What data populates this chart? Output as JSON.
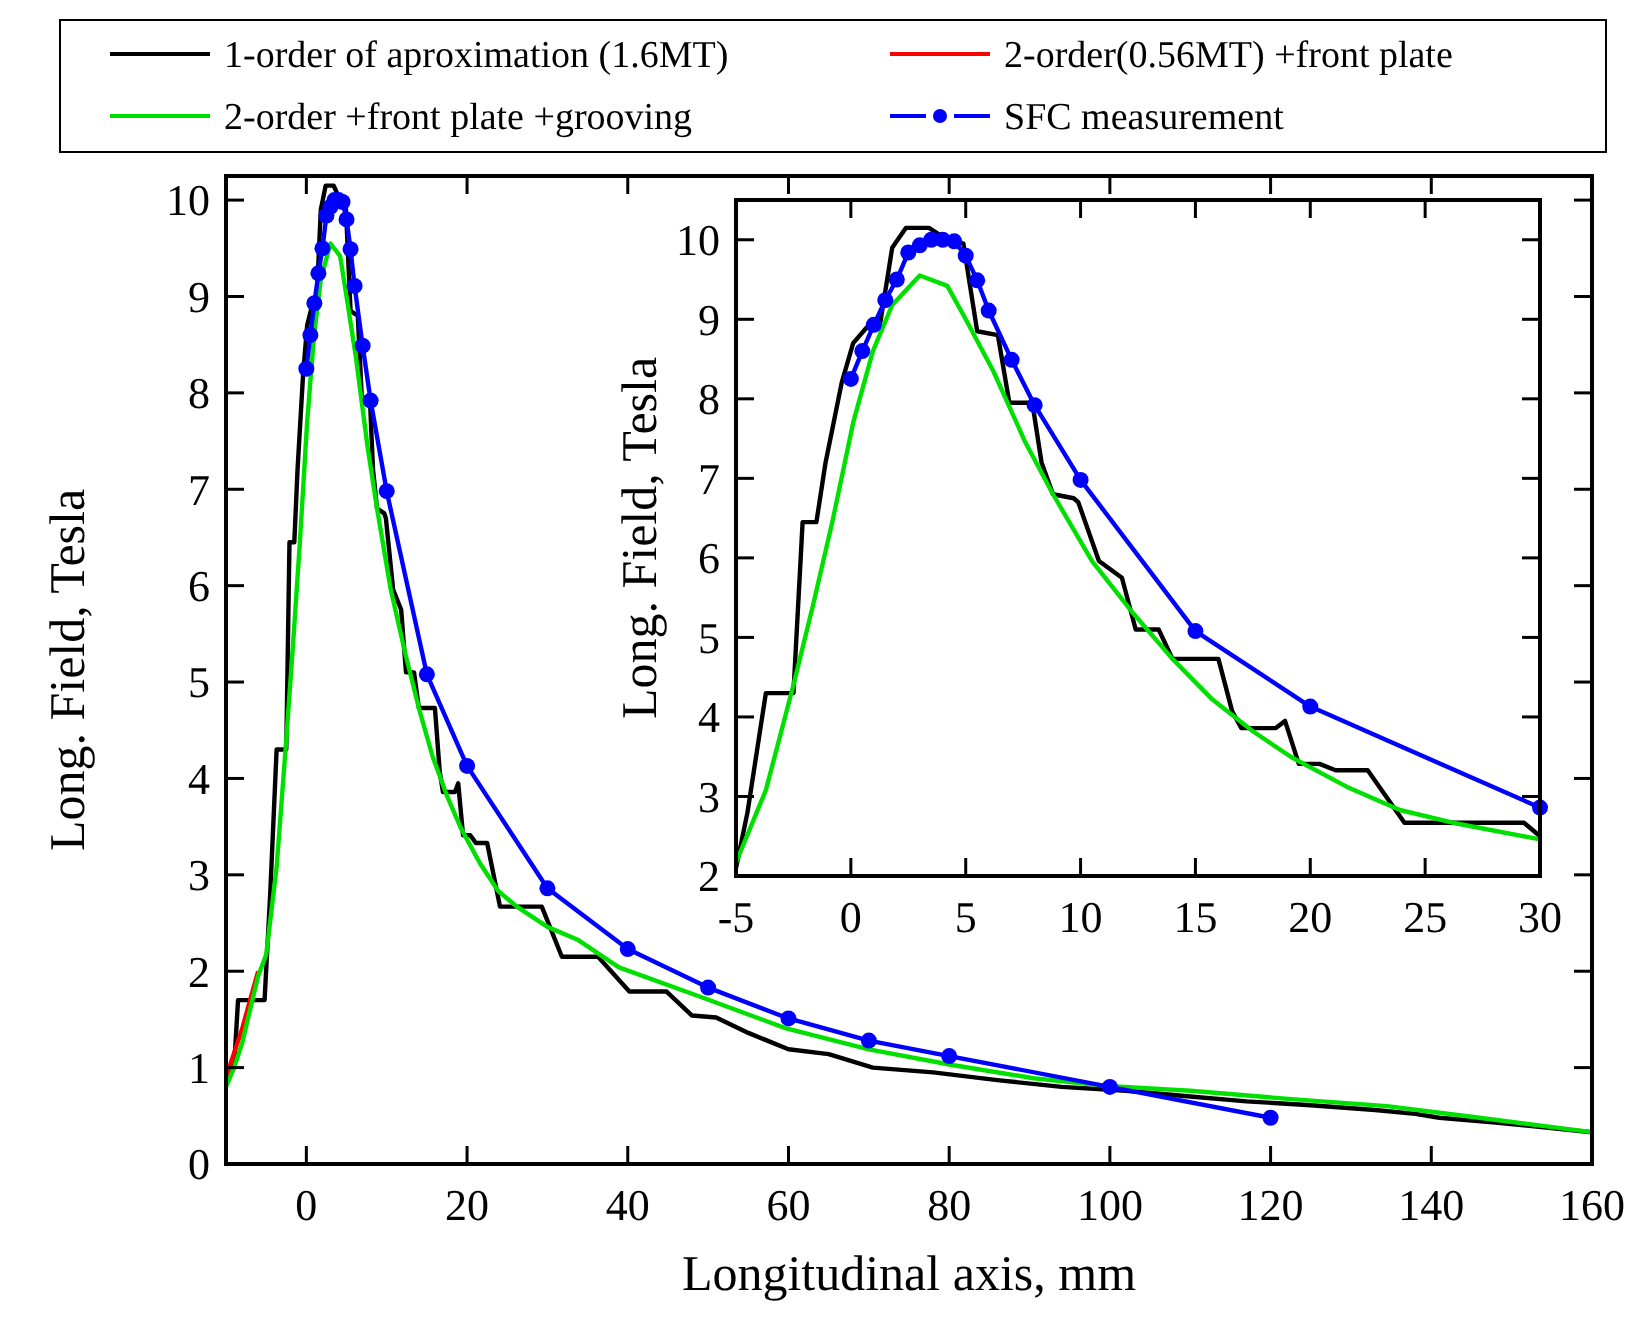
{
  "chart_data": [
    {
      "type": "line",
      "xlabel": "Longitudinal axis, mm",
      "ylabel": "Long. Field, Tesla",
      "xlim": [
        -10,
        160
      ],
      "ylim": [
        0,
        10.25
      ],
      "xticks": [
        0,
        20,
        40,
        60,
        80,
        100,
        120,
        140,
        160
      ],
      "yticks": [
        0,
        1,
        2,
        3,
        4,
        5,
        6,
        7,
        8,
        9,
        10
      ],
      "legend": "top",
      "series": [
        {
          "name": "1-order of aproximation (1.6MT)",
          "color": "#000000",
          "x": [
            -10,
            -9,
            -8.5,
            -5.2,
            -4.5,
            -3.7,
            -2.5,
            -2.1,
            -1.5,
            -1.1,
            -0.4,
            0.1,
            0.7,
            1.25,
            1.8,
            2.4,
            3.4,
            4.2,
            4.9,
            5.5,
            6.4,
            6.9,
            7.9,
            8.3,
            8.8,
            9.7,
            9.9,
            10.8,
            11.8,
            12.4,
            13.4,
            14,
            16,
            16.6,
            17,
            18.5,
            18.9,
            19.5,
            20.4,
            21.1,
            22.5,
            24.1,
            29.3,
            31.8,
            36.3,
            40.2,
            44.8,
            48,
            51,
            55,
            60,
            65,
            70.5,
            78,
            86,
            94,
            102,
            110,
            117,
            125,
            133,
            138,
            141,
            148,
            154,
            160
          ],
          "values": [
            0.85,
            1.0,
            1.7,
            1.7,
            2.8,
            4.3,
            4.3,
            6.45,
            6.45,
            7.2,
            8.2,
            8.7,
            8.9,
            8.9,
            9.9,
            10.15,
            10.15,
            10.0,
            9.95,
            8.85,
            8.8,
            7.95,
            7.95,
            7.2,
            6.8,
            6.75,
            6.7,
            5.96,
            5.75,
            5.1,
            5.1,
            4.73,
            4.73,
            4.07,
            3.86,
            3.86,
            3.95,
            3.41,
            3.41,
            3.33,
            3.33,
            2.67,
            2.67,
            2.15,
            2.15,
            1.79,
            1.79,
            1.54,
            1.52,
            1.36,
            1.19,
            1.14,
            1.0,
            0.95,
            0.87,
            0.8,
            0.76,
            0.7,
            0.65,
            0.61,
            0.56,
            0.52,
            0.48,
            0.43,
            0.38,
            0.33
          ]
        },
        {
          "name": "2-order(0.56MT) +front plate",
          "color": "#ff0000",
          "x": [
            -10,
            -9,
            -8,
            -7,
            -6
          ],
          "values": [
            0.9,
            1.15,
            1.4,
            1.7,
            2.0
          ]
        },
        {
          "name": "2-order +front plate +grooving",
          "color": "#00e000",
          "x": [
            -10,
            -9,
            -8,
            -7,
            -6,
            -5,
            -3.7,
            -2.5,
            -1.65,
            -0.8,
            0.1,
            0.96,
            1.8,
            3,
            4.2,
            5,
            6.2,
            7.6,
            8.8,
            10.5,
            12.3,
            14,
            15.7,
            17.5,
            19.2,
            21.6,
            23.9,
            26.2,
            30,
            33.7,
            38.9,
            49.2,
            59.6,
            70,
            80.2,
            90.5,
            99.6,
            110,
            123,
            134.5,
            145,
            160
          ],
          "values": [
            0.8,
            1.0,
            1.25,
            1.6,
            1.95,
            2.17,
            3.08,
            4.4,
            5.4,
            6.46,
            7.7,
            8.6,
            9.18,
            9.55,
            9.42,
            9.0,
            8.35,
            7.45,
            6.8,
            5.96,
            5.3,
            4.73,
            4.23,
            3.82,
            3.49,
            3.12,
            2.83,
            2.67,
            2.46,
            2.33,
            2.04,
            1.73,
            1.41,
            1.19,
            1.03,
            0.89,
            0.81,
            0.76,
            0.67,
            0.6,
            0.49,
            0.33
          ]
        },
        {
          "name": "SFC measurement",
          "color": "#0000ff",
          "marker": "circle",
          "x": [
            0,
            0.5,
            1,
            1.5,
            2,
            2.5,
            3,
            3.5,
            4,
            4.5,
            5,
            5.5,
            6,
            7,
            8,
            10,
            15,
            20,
            30,
            40,
            50,
            60,
            70,
            80,
            100,
            120
          ],
          "values": [
            8.25,
            8.6,
            8.93,
            9.24,
            9.5,
            9.84,
            9.93,
            10.0,
            10.0,
            9.98,
            9.8,
            9.49,
            9.11,
            8.49,
            7.92,
            6.98,
            5.08,
            4.13,
            2.86,
            2.23,
            1.83,
            1.51,
            1.28,
            1.12,
            0.8,
            0.48
          ]
        }
      ]
    },
    {
      "type": "line",
      "ylabel": "Long. Field, Tesla",
      "xlim": [
        -5,
        30
      ],
      "ylim": [
        2,
        10.5
      ],
      "xticks": [
        -5,
        0,
        5,
        10,
        15,
        20,
        25,
        30
      ],
      "yticks": [
        2,
        3,
        4,
        5,
        6,
        7,
        8,
        9,
        10
      ],
      "series": [
        {
          "color": "#000000",
          "x": [
            -5,
            -4.5,
            -3.7,
            -2.5,
            -2.1,
            -1.5,
            -1.1,
            -0.4,
            0.1,
            0.7,
            1.25,
            1.8,
            2.4,
            3.4,
            4.2,
            4.9,
            5.5,
            6.4,
            6.9,
            7.9,
            8.3,
            8.8,
            9.7,
            9.9,
            10.8,
            11.8,
            12.4,
            13.4,
            14,
            16,
            16.6,
            17,
            18.5,
            18.9,
            19.5,
            20.4,
            21.1,
            22.5,
            24.1,
            29.3,
            30
          ],
          "values": [
            2.1,
            2.8,
            4.3,
            4.3,
            6.45,
            6.45,
            7.2,
            8.2,
            8.7,
            8.9,
            8.9,
            9.9,
            10.15,
            10.15,
            10.0,
            9.95,
            8.85,
            8.8,
            7.95,
            7.95,
            7.2,
            6.8,
            6.75,
            6.7,
            5.96,
            5.75,
            5.1,
            5.1,
            4.73,
            4.73,
            4.07,
            3.86,
            3.86,
            3.95,
            3.41,
            3.41,
            3.33,
            3.33,
            2.67,
            2.67,
            2.5
          ]
        },
        {
          "color": "#00e000",
          "x": [
            -5,
            -3.7,
            -2.5,
            -1.65,
            -0.8,
            0.1,
            0.96,
            1.8,
            3,
            4.2,
            5,
            6.2,
            7.6,
            8.8,
            10.5,
            12.3,
            14,
            15.7,
            17.5,
            19.2,
            21.6,
            23.9,
            26.2,
            30
          ],
          "values": [
            2.17,
            3.08,
            4.4,
            5.4,
            6.46,
            7.7,
            8.6,
            9.18,
            9.55,
            9.42,
            9.0,
            8.35,
            7.45,
            6.8,
            5.96,
            5.3,
            4.73,
            4.23,
            3.82,
            3.49,
            3.12,
            2.83,
            2.67,
            2.46
          ]
        },
        {
          "color": "#0000ff",
          "marker": "circle",
          "x": [
            0,
            0.5,
            1,
            1.5,
            2,
            2.5,
            3,
            3.5,
            4,
            4.5,
            5,
            5.5,
            6,
            7,
            8,
            10,
            15,
            20,
            30
          ],
          "values": [
            8.25,
            8.6,
            8.93,
            9.24,
            9.5,
            9.84,
            9.93,
            10.0,
            10.0,
            9.98,
            9.8,
            9.49,
            9.11,
            8.49,
            7.92,
            6.98,
            5.08,
            4.13,
            2.86
          ]
        }
      ]
    }
  ]
}
